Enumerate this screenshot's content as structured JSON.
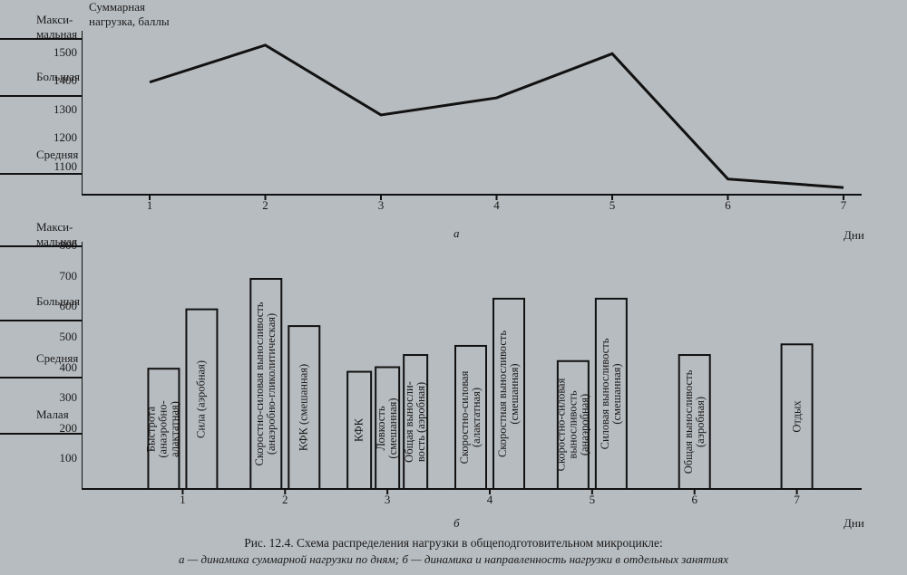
{
  "background_color": "#b7bcc0",
  "stroke_color": "#111111",
  "font_family": "Times New Roman",
  "tick_fontsize": 13,
  "bar_label_fontsize": 12.5,
  "chart_a": {
    "type": "line",
    "title_top": "Суммарная\nнагрузка, баллы",
    "panel_letter": "а",
    "x_axis_title": "Дни",
    "ylim": [
      1000,
      1550
    ],
    "yticks": [
      1100,
      1200,
      1300,
      1400,
      1500
    ],
    "category_labels": {
      "Макси-\nмальная": 1550,
      "Большая": 1350,
      "Средняя": 1075
    },
    "hlines": [
      1075,
      1350,
      1550
    ],
    "x": [
      1,
      2,
      3,
      4,
      5,
      6,
      7
    ],
    "y": [
      1395,
      1525,
      1280,
      1340,
      1495,
      1055,
      1025
    ],
    "line_width": 3,
    "line_color": "#111111"
  },
  "chart_b": {
    "type": "bar",
    "panel_letter": "б",
    "x_axis_title": "Дни",
    "ylim": [
      0,
      800
    ],
    "yticks": [
      100,
      200,
      300,
      400,
      500,
      600,
      700,
      800
    ],
    "category_labels": {
      "Макси-\nмальная": 800,
      "Большая": 555,
      "Средняя": 370,
      "Малая": 185
    },
    "hlines": [
      185,
      370,
      555,
      800
    ],
    "days": [
      1,
      2,
      3,
      4,
      5,
      6,
      7
    ],
    "bar_fill": "none",
    "bar_stroke": "#111111",
    "bar_stroke_width": 2,
    "bars": [
      {
        "day": 1,
        "slot": 0,
        "of": 2,
        "value": 395,
        "label": "Быстрота\n(анаэробно-\nалактатная)"
      },
      {
        "day": 1,
        "slot": 1,
        "of": 2,
        "value": 590,
        "label": "Сила (аэробная)"
      },
      {
        "day": 2,
        "slot": 0,
        "of": 2,
        "value": 690,
        "label": "Скоростно-силовая выносливость\n(анаэробно-гликолитическая)"
      },
      {
        "day": 2,
        "slot": 1,
        "of": 2,
        "value": 535,
        "label": "КФК (смешанная)"
      },
      {
        "day": 3,
        "slot": 0,
        "of": 3,
        "value": 385,
        "label": "КФК"
      },
      {
        "day": 3,
        "slot": 1,
        "of": 3,
        "value": 400,
        "label": "Ловкость\n(смешанная)"
      },
      {
        "day": 3,
        "slot": 2,
        "of": 3,
        "value": 440,
        "label": "Общая выносли-\nвость (аэробная)"
      },
      {
        "day": 4,
        "slot": 0,
        "of": 2,
        "value": 470,
        "label": "Скоростно-силовая\n(алактатная)"
      },
      {
        "day": 4,
        "slot": 1,
        "of": 2,
        "value": 625,
        "label": "Скоростная выносливость\n(смешанная)"
      },
      {
        "day": 5,
        "slot": 0,
        "of": 2,
        "value": 420,
        "label": "Скоростно-силовая\nвыносливость\n(анаэробная)"
      },
      {
        "day": 5,
        "slot": 1,
        "of": 2,
        "value": 625,
        "label": "Силовая выносливость\n(смешанная)"
      },
      {
        "day": 6,
        "slot": 0,
        "of": 1,
        "value": 440,
        "label": "Общая выносливость\n(аэробная)"
      },
      {
        "day": 7,
        "slot": 0,
        "of": 1,
        "value": 475,
        "label": "Отдых"
      }
    ]
  },
  "caption": {
    "fig_label": "Рис. 12.4. Схема распределения нагрузки в общеподготовительном микроцикле:",
    "line_a": "а — динамика суммарной нагрузки по дням; б — динамика и направленность нагрузки в отдельных занятиях"
  }
}
